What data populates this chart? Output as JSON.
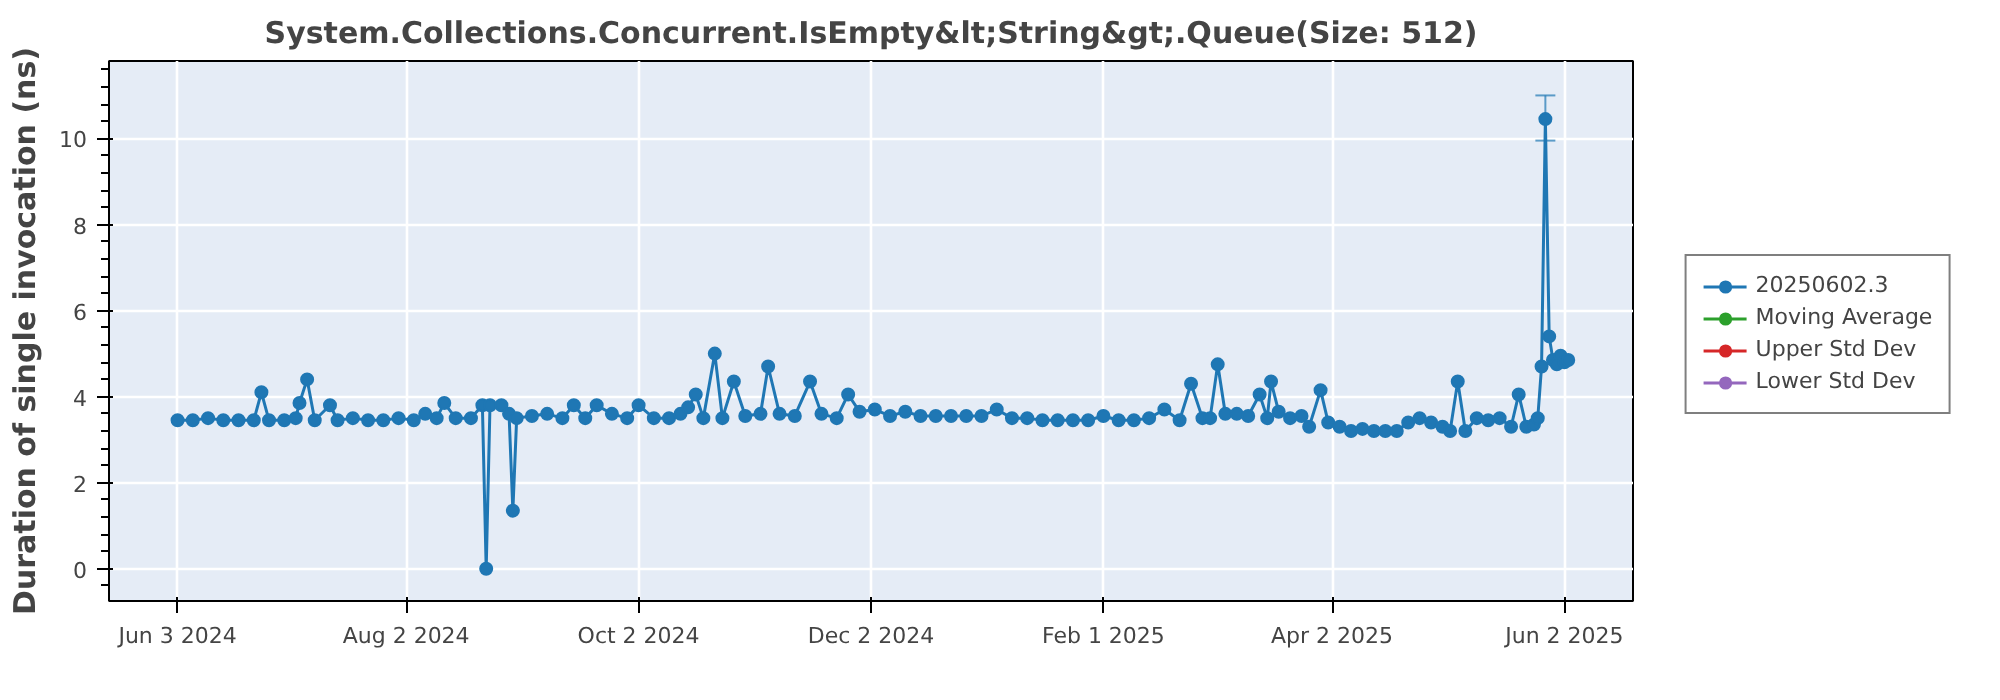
{
  "chart_data": {
    "type": "line",
    "title": "System.Collections.Concurrent.IsEmpty&lt;String&gt;.Queue(Size: 512)",
    "ylabel": "Duration of single invocation (ns)",
    "xlim": [
      "2024-05-16",
      "2025-06-20"
    ],
    "xticks": [
      {
        "value": "2024-06-03",
        "label": "Jun 3 2024"
      },
      {
        "value": "2024-08-02",
        "label": "Aug 2 2024"
      },
      {
        "value": "2024-10-02",
        "label": "Oct 2 2024"
      },
      {
        "value": "2024-12-02",
        "label": "Dec 2 2024"
      },
      {
        "value": "2025-02-01",
        "label": "Feb 1 2025"
      },
      {
        "value": "2025-04-02",
        "label": "Apr 2 2025"
      },
      {
        "value": "2025-06-02",
        "label": "Jun 2 2025"
      }
    ],
    "ylim": [
      -0.75,
      11.8
    ],
    "yticks": [
      0,
      2,
      4,
      6,
      8,
      10
    ],
    "grid": true,
    "legend": "right",
    "marker": "circle",
    "line_style": "solid",
    "x": [
      "2024-06-03",
      "2024-06-07",
      "2024-06-11",
      "2024-06-15",
      "2024-06-19",
      "2024-06-23",
      "2024-06-25",
      "2024-06-27",
      "2024-07-01",
      "2024-07-04",
      "2024-07-05",
      "2024-07-07",
      "2024-07-09",
      "2024-07-13",
      "2024-07-15",
      "2024-07-19",
      "2024-07-23",
      "2024-07-27",
      "2024-07-31",
      "2024-08-04",
      "2024-08-07",
      "2024-08-10",
      "2024-08-12",
      "2024-08-15",
      "2024-08-19",
      "2024-08-22",
      "2024-08-23",
      "2024-08-24",
      "2024-08-27",
      "2024-08-29",
      "2024-08-30",
      "2024-08-31",
      "2024-09-04",
      "2024-09-08",
      "2024-09-12",
      "2024-09-15",
      "2024-09-18",
      "2024-09-21",
      "2024-09-25",
      "2024-09-29",
      "2024-10-02",
      "2024-10-06",
      "2024-10-10",
      "2024-10-13",
      "2024-10-15",
      "2024-10-17",
      "2024-10-19",
      "2024-10-22",
      "2024-10-24",
      "2024-10-27",
      "2024-10-30",
      "2024-11-03",
      "2024-11-05",
      "2024-11-08",
      "2024-11-12",
      "2024-11-16",
      "2024-11-19",
      "2024-11-23",
      "2024-11-26",
      "2024-11-29",
      "2024-12-03",
      "2024-12-07",
      "2024-12-11",
      "2024-12-15",
      "2024-12-19",
      "2024-12-23",
      "2024-12-27",
      "2024-12-31",
      "2025-01-04",
      "2025-01-08",
      "2025-01-12",
      "2025-01-16",
      "2025-01-20",
      "2025-01-24",
      "2025-01-28",
      "2025-02-01",
      "2025-02-05",
      "2025-02-09",
      "2025-02-13",
      "2025-02-17",
      "2025-02-21",
      "2025-02-24",
      "2025-02-27",
      "2025-03-01",
      "2025-03-03",
      "2025-03-05",
      "2025-03-08",
      "2025-03-11",
      "2025-03-14",
      "2025-03-16",
      "2025-03-17",
      "2025-03-19",
      "2025-03-22",
      "2025-03-25",
      "2025-03-27",
      "2025-03-30",
      "2025-04-01",
      "2025-04-04",
      "2025-04-07",
      "2025-04-10",
      "2025-04-13",
      "2025-04-16",
      "2025-04-19",
      "2025-04-22",
      "2025-04-25",
      "2025-04-28",
      "2025-05-01",
      "2025-05-03",
      "2025-05-05",
      "2025-05-07",
      "2025-05-10",
      "2025-05-13",
      "2025-05-16",
      "2025-05-19",
      "2025-05-21",
      "2025-05-23",
      "2025-05-25",
      "2025-05-26",
      "2025-05-27",
      "2025-05-28",
      "2025-05-29",
      "2025-05-30",
      "2025-05-31",
      "2025-06-01",
      "2025-06-02",
      "2025-06-03"
    ],
    "series": [
      {
        "name": "20250602.3",
        "color": "#1f77b4",
        "values": [
          3.45,
          3.45,
          3.5,
          3.45,
          3.45,
          3.45,
          4.1,
          3.45,
          3.45,
          3.5,
          3.85,
          4.4,
          3.45,
          3.8,
          3.45,
          3.5,
          3.45,
          3.45,
          3.5,
          3.45,
          3.6,
          3.5,
          3.85,
          3.5,
          3.5,
          3.8,
          0,
          3.8,
          3.8,
          3.6,
          1.35,
          3.5,
          3.55,
          3.6,
          3.5,
          3.8,
          3.5,
          3.8,
          3.6,
          3.5,
          3.8,
          3.5,
          3.5,
          3.6,
          3.75,
          4.05,
          3.5,
          5.0,
          3.5,
          4.35,
          3.55,
          3.6,
          4.7,
          3.6,
          3.55,
          4.35,
          3.6,
          3.5,
          4.05,
          3.65,
          3.7,
          3.55,
          3.65,
          3.55,
          3.55,
          3.55,
          3.55,
          3.55,
          3.7,
          3.5,
          3.5,
          3.45,
          3.45,
          3.45,
          3.45,
          3.55,
          3.45,
          3.45,
          3.5,
          3.7,
          3.45,
          4.3,
          3.5,
          3.5,
          4.75,
          3.6,
          3.6,
          3.55,
          4.05,
          3.5,
          4.35,
          3.65,
          3.5,
          3.55,
          3.3,
          4.15,
          3.4,
          3.3,
          3.2,
          3.25,
          3.2,
          3.2,
          3.2,
          3.4,
          3.5,
          3.4,
          3.3,
          3.2,
          4.35,
          3.2,
          3.5,
          3.45,
          3.5,
          3.3,
          4.05,
          3.3,
          3.35,
          3.5,
          4.7,
          10.45,
          5.4,
          4.85,
          4.75,
          4.95,
          4.8,
          4.85
        ],
        "errors": [
          null,
          null,
          null,
          null,
          null,
          null,
          null,
          null,
          null,
          null,
          null,
          null,
          null,
          null,
          null,
          null,
          null,
          null,
          null,
          null,
          null,
          null,
          null,
          null,
          null,
          null,
          null,
          null,
          null,
          null,
          null,
          null,
          null,
          null,
          null,
          null,
          null,
          null,
          null,
          null,
          null,
          null,
          null,
          null,
          null,
          null,
          null,
          null,
          null,
          null,
          null,
          null,
          null,
          null,
          null,
          null,
          null,
          null,
          null,
          null,
          null,
          null,
          null,
          null,
          null,
          null,
          null,
          null,
          null,
          null,
          null,
          null,
          null,
          null,
          null,
          null,
          null,
          null,
          null,
          null,
          null,
          null,
          null,
          null,
          null,
          null,
          null,
          null,
          null,
          null,
          null,
          null,
          null,
          null,
          null,
          null,
          null,
          null,
          null,
          null,
          null,
          null,
          null,
          null,
          null,
          null,
          null,
          null,
          null,
          null,
          null,
          null,
          null,
          null,
          null,
          null,
          null,
          null,
          null,
          [
            9.95,
            11.0
          ],
          null,
          null,
          null,
          null,
          null,
          null
        ]
      },
      {
        "name": "Moving Average",
        "color": "#2ca02c",
        "values": [
          null,
          null,
          null,
          null,
          null,
          null,
          null,
          null,
          null,
          null,
          null,
          null,
          null,
          null,
          null,
          null,
          null,
          null,
          null,
          null,
          null,
          null,
          null,
          null,
          null,
          null,
          null,
          null,
          null,
          null,
          null,
          null,
          null,
          null,
          null,
          null,
          null,
          null,
          null,
          null,
          null,
          null,
          null,
          null,
          null,
          null,
          null,
          null,
          null,
          null,
          null,
          null,
          null,
          null,
          null,
          null,
          null,
          null,
          null,
          null,
          null,
          null,
          null,
          null,
          null,
          null,
          null,
          null,
          null,
          null,
          null,
          null,
          null,
          null,
          null,
          null,
          null,
          null,
          null,
          null,
          null,
          null,
          null,
          null,
          null,
          null,
          null,
          null,
          null,
          null,
          null,
          null,
          null,
          null,
          null,
          null,
          null,
          null,
          null,
          null,
          null,
          null,
          null,
          null,
          null,
          null,
          null,
          null,
          null,
          null,
          null,
          null,
          null,
          null,
          null,
          null,
          null,
          null,
          null,
          null,
          null,
          null,
          null,
          null,
          null,
          null
        ]
      },
      {
        "name": "Upper Std Dev",
        "color": "#d62728",
        "values": [
          null,
          null,
          null,
          null,
          null,
          null,
          null,
          null,
          null,
          null,
          null,
          null,
          null,
          null,
          null,
          null,
          null,
          null,
          null,
          null,
          null,
          null,
          null,
          null,
          null,
          null,
          null,
          null,
          null,
          null,
          null,
          null,
          null,
          null,
          null,
          null,
          null,
          null,
          null,
          null,
          null,
          null,
          null,
          null,
          null,
          null,
          null,
          null,
          null,
          null,
          null,
          null,
          null,
          null,
          null,
          null,
          null,
          null,
          null,
          null,
          null,
          null,
          null,
          null,
          null,
          null,
          null,
          null,
          null,
          null,
          null,
          null,
          null,
          null,
          null,
          null,
          null,
          null,
          null,
          null,
          null,
          null,
          null,
          null,
          null,
          null,
          null,
          null,
          null,
          null,
          null,
          null,
          null,
          null,
          null,
          null,
          null,
          null,
          null,
          null,
          null,
          null,
          null,
          null,
          null,
          null,
          null,
          null,
          null,
          null,
          null,
          null,
          null,
          null,
          null,
          null,
          null,
          null,
          null,
          null,
          null,
          null,
          null,
          null,
          null,
          null
        ]
      },
      {
        "name": "Lower Std Dev",
        "color": "#9467bd",
        "values": [
          null,
          null,
          null,
          null,
          null,
          null,
          null,
          null,
          null,
          null,
          null,
          null,
          null,
          null,
          null,
          null,
          null,
          null,
          null,
          null,
          null,
          null,
          null,
          null,
          null,
          null,
          null,
          null,
          null,
          null,
          null,
          null,
          null,
          null,
          null,
          null,
          null,
          null,
          null,
          null,
          null,
          null,
          null,
          null,
          null,
          null,
          null,
          null,
          null,
          null,
          null,
          null,
          null,
          null,
          null,
          null,
          null,
          null,
          null,
          null,
          null,
          null,
          null,
          null,
          null,
          null,
          null,
          null,
          null,
          null,
          null,
          null,
          null,
          null,
          null,
          null,
          null,
          null,
          null,
          null,
          null,
          null,
          null,
          null,
          null,
          null,
          null,
          null,
          null,
          null,
          null,
          null,
          null,
          null,
          null,
          null,
          null,
          null,
          null,
          null,
          null,
          null,
          null,
          null,
          null,
          null,
          null,
          null,
          null,
          null,
          null,
          null,
          null,
          null,
          null,
          null,
          null,
          null,
          null,
          null,
          null,
          null,
          null,
          null,
          null,
          null
        ]
      }
    ]
  }
}
